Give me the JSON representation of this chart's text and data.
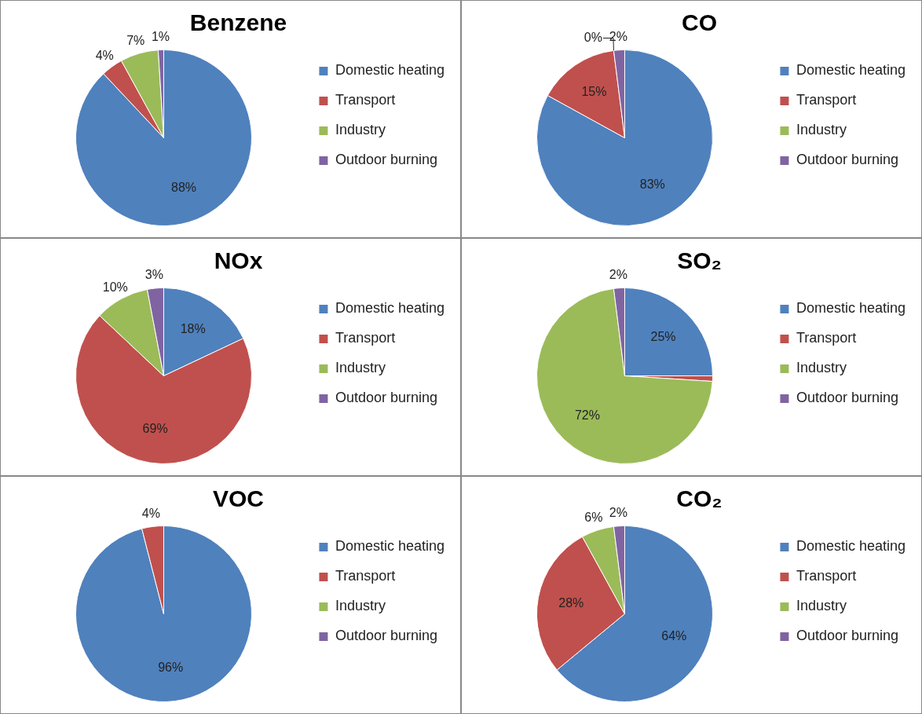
{
  "chart_data": [
    {
      "type": "pie",
      "title": "Benzene",
      "categories": [
        "Domestic heating",
        "Transport",
        "Industry",
        "Outdoor burning"
      ],
      "values": [
        88,
        4,
        7,
        1
      ],
      "value_labels": [
        "88%",
        "4%",
        "7%",
        "1%"
      ],
      "colors": [
        "#4f81bd",
        "#c0504d",
        "#9bbb59",
        "#8064a2"
      ],
      "legend": "right"
    },
    {
      "type": "pie",
      "title": "CO",
      "categories": [
        "Domestic heating",
        "Transport",
        "Industry",
        "Outdoor burning"
      ],
      "values": [
        83,
        15,
        0,
        2
      ],
      "value_labels": [
        "83%",
        "15%",
        "0%",
        "2%"
      ],
      "colors": [
        "#4f81bd",
        "#c0504d",
        "#9bbb59",
        "#8064a2"
      ],
      "legend": "right"
    },
    {
      "type": "pie",
      "title": "NOx",
      "categories": [
        "Domestic heating",
        "Transport",
        "Industry",
        "Outdoor burning"
      ],
      "values": [
        18,
        69,
        10,
        3
      ],
      "value_labels": [
        "18%",
        "69%",
        "10%",
        "3%"
      ],
      "colors": [
        "#4f81bd",
        "#c0504d",
        "#9bbb59",
        "#8064a2"
      ],
      "legend": "right"
    },
    {
      "type": "pie",
      "title": "SO₂",
      "categories": [
        "Domestic heating",
        "Transport",
        "Industry",
        "Outdoor burning"
      ],
      "values": [
        25,
        1,
        72,
        2
      ],
      "value_labels": [
        "25%",
        null,
        "72%",
        "2%"
      ],
      "colors": [
        "#4f81bd",
        "#c0504d",
        "#9bbb59",
        "#8064a2"
      ],
      "legend": "right"
    },
    {
      "type": "pie",
      "title": "VOC",
      "categories": [
        "Domestic heating",
        "Transport",
        "Industry",
        "Outdoor burning"
      ],
      "values": [
        96,
        4,
        0,
        0
      ],
      "value_labels": [
        "96%",
        "4%",
        null,
        null
      ],
      "colors": [
        "#4f81bd",
        "#c0504d",
        "#9bbb59",
        "#8064a2"
      ],
      "legend": "right"
    },
    {
      "type": "pie",
      "title": "CO₂",
      "categories": [
        "Domestic heating",
        "Transport",
        "Industry",
        "Outdoor burning"
      ],
      "values": [
        64,
        28,
        6,
        2
      ],
      "value_labels": [
        "64%",
        "28%",
        "6%",
        "2%"
      ],
      "colors": [
        "#4f81bd",
        "#c0504d",
        "#9bbb59",
        "#8064a2"
      ],
      "legend": "right"
    }
  ]
}
